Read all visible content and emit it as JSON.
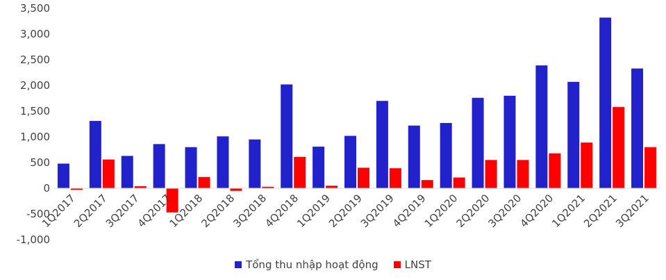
{
  "chart_data": {
    "type": "bar",
    "categories": [
      "1Q2017",
      "2Q2017",
      "3Q2017",
      "4Q2017",
      "1Q2018",
      "2Q2018",
      "3Q2018",
      "4Q2018",
      "1Q2019",
      "2Q2019",
      "3Q2019",
      "4Q2019",
      "1Q2020",
      "2Q2020",
      "3Q2020",
      "4Q2020",
      "1Q2021",
      "2Q2021",
      "3Q2021"
    ],
    "series": [
      {
        "name": "Tổng thu nhập hoạt động",
        "color": "#2222cc",
        "values": [
          480,
          1310,
          630,
          860,
          800,
          1010,
          950,
          2020,
          810,
          1020,
          1700,
          1220,
          1270,
          1760,
          1800,
          2390,
          2070,
          3320,
          2330
        ]
      },
      {
        "name": "LNST",
        "color": "#ff0000",
        "values": [
          -30,
          560,
          40,
          -470,
          220,
          -50,
          30,
          610,
          50,
          400,
          390,
          160,
          210,
          550,
          550,
          680,
          890,
          1580,
          800
        ]
      }
    ],
    "yticks": [
      "3,500",
      "3,000",
      "2,500",
      "2,000",
      "1,500",
      "1,000",
      "500",
      "0",
      "-500",
      "-1,000"
    ],
    "ylim": [
      -1000,
      3500
    ],
    "grid": false,
    "legend_position": "bottom"
  }
}
